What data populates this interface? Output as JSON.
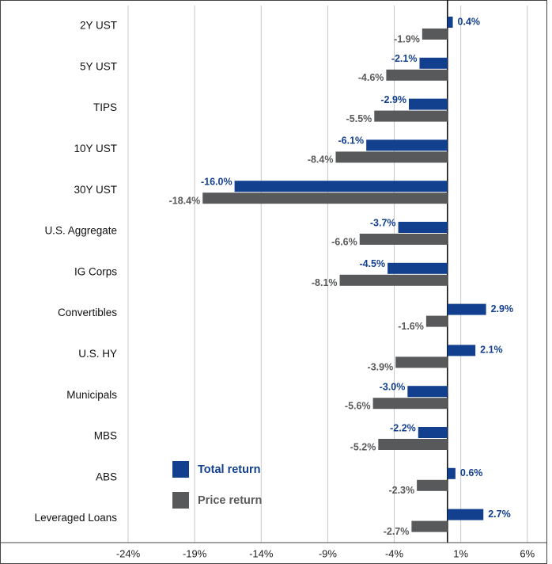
{
  "chart_data": {
    "type": "hbar",
    "categories": [
      "2Y UST",
      "5Y UST",
      "TIPS",
      "10Y UST",
      "30Y UST",
      "U.S. Aggregate",
      "IG Corps",
      "Convertibles",
      "U.S. HY",
      "Municipals",
      "MBS",
      "ABS",
      "Leveraged Loans"
    ],
    "series": [
      {
        "name": "Total return",
        "color": "#123f8e",
        "values": [
          0.4,
          -2.1,
          -2.9,
          -6.1,
          -16.0,
          -3.7,
          -4.5,
          2.9,
          2.1,
          -3.0,
          -2.2,
          0.6,
          2.7
        ],
        "value_labels": [
          "0.4%",
          "-2.1%",
          "-2.9%",
          "-6.1%",
          "-16.0%",
          "-3.7%",
          "-4.5%",
          "2.9%",
          "2.1%",
          "-3.0%",
          "-2.2%",
          "0.6%",
          "2.7%"
        ]
      },
      {
        "name": "Price return",
        "color": "#58595b",
        "values": [
          -1.9,
          -4.6,
          -5.5,
          -8.4,
          -18.4,
          -6.6,
          -8.1,
          -1.6,
          -3.9,
          -5.6,
          -5.2,
          -2.3,
          -2.7
        ],
        "value_labels": [
          "-1.9%",
          "-4.6%",
          "-5.5%",
          "-8.4%",
          "-18.4%",
          "-6.6%",
          "-8.1%",
          "-1.6%",
          "-3.9%",
          "-5.6%",
          "-5.2%",
          "-2.3%",
          "-2.7%"
        ]
      }
    ],
    "xlim": [
      -24,
      7.5
    ],
    "xticks": [
      {
        "value": -24,
        "label": "-24%"
      },
      {
        "value": -19,
        "label": "-19%"
      },
      {
        "value": -14,
        "label": "-14%"
      },
      {
        "value": -9,
        "label": "-9%"
      },
      {
        "value": -4,
        "label": "-4%"
      },
      {
        "value": 1,
        "label": "1%"
      },
      {
        "value": 6,
        "label": "6%"
      }
    ],
    "grid": true,
    "legend": "lower center"
  }
}
